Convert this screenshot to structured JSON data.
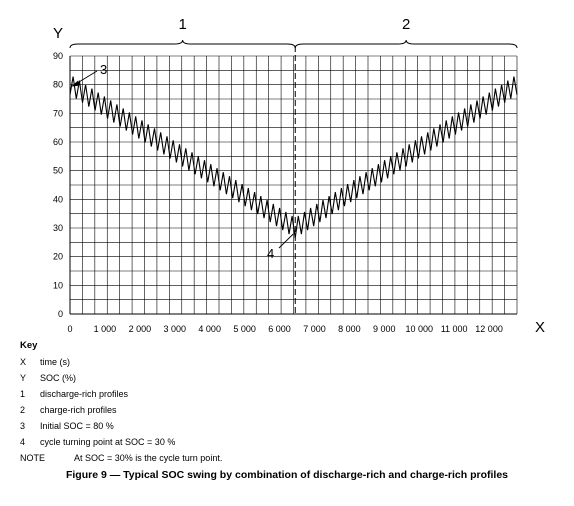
{
  "chart_data": {
    "type": "line",
    "axis_x_letter": "X",
    "axis_y_letter": "Y",
    "x_ticks": [
      "0",
      "1 000",
      "2 000",
      "3 000",
      "4 000",
      "5 000",
      "6 000",
      "7 000",
      "8 000",
      "9 000",
      "10 000",
      "11 000",
      "12 000"
    ],
    "y_ticks": [
      "0",
      "10",
      "20",
      "30",
      "40",
      "50",
      "60",
      "70",
      "80",
      "90"
    ],
    "xlim": [
      0,
      12800
    ],
    "ylim": [
      0,
      90
    ],
    "grid": true,
    "turn_point_x": 6450,
    "series": [
      {
        "x": [
          0,
          6450,
          12800
        ],
        "y": [
          80,
          30,
          80
        ],
        "oscillation_amplitude": 7,
        "oscillation_cycles_per_half": 36
      }
    ],
    "braces": [
      {
        "label": "1",
        "x_start": 0,
        "x_end": 6450
      },
      {
        "label": "2",
        "x_start": 6450,
        "x_end": 12800
      }
    ],
    "markers": [
      {
        "label": "3",
        "x": 0,
        "y": 80
      },
      {
        "label": "4",
        "x": 6450,
        "y": 30
      }
    ]
  },
  "key": {
    "title": "Key",
    "items": [
      {
        "k": "X",
        "text": "time (s)"
      },
      {
        "k": "Y",
        "text": "SOC (%)"
      },
      {
        "k": "1",
        "text": "discharge-rich profiles"
      },
      {
        "k": "2",
        "text": "charge-rich profiles"
      },
      {
        "k": "3",
        "text": "Initial SOC = 80 %"
      },
      {
        "k": "4",
        "text": "cycle turning point at SOC = 30 %"
      }
    ],
    "note_label": "NOTE",
    "note_text": "At SOC = 30% is the cycle turn point."
  },
  "caption": "Figure 9 — Typical SOC swing by combination of discharge-rich and charge-rich profiles"
}
